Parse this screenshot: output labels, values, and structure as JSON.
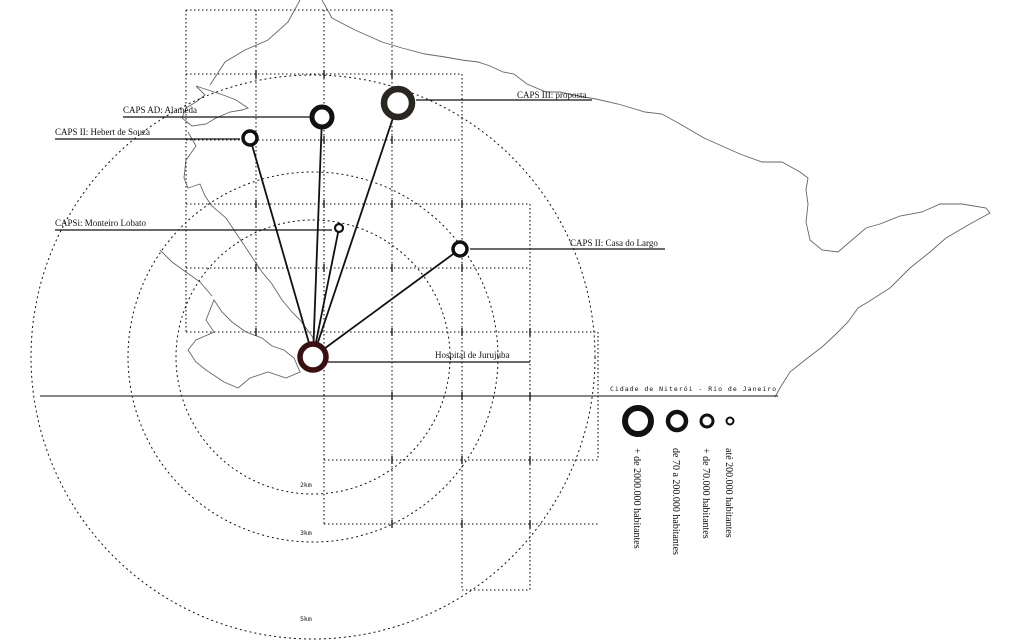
{
  "map": {
    "region_label": "Cidade de Niterói - Rio de Janeiro",
    "colors": {
      "ink": "#111111",
      "hospital": "#3a0f0f",
      "proposed": "#2a2622"
    }
  },
  "facilities": [
    {
      "id": "caps-ad",
      "label": "CAPS AD: Alameda",
      "type": "existing",
      "size_class": 2
    },
    {
      "id": "caps-ii-hebert",
      "label": "CAPS II: Hebert de Souza",
      "type": "existing",
      "size_class": 3
    },
    {
      "id": "caps-iii",
      "label": "CAPS III: proposta",
      "type": "proposed",
      "size_class": 1
    },
    {
      "id": "capsi",
      "label": "CAPSi: Monteiro Lobato",
      "type": "existing",
      "size_class": 4
    },
    {
      "id": "caps-ii-largo",
      "label": "CAPS II: Casa do Largo",
      "type": "existing",
      "size_class": 3
    },
    {
      "id": "hospital",
      "label": "Hospital de Jurujuba",
      "type": "hospital",
      "size_class": 1
    }
  ],
  "radii": [
    {
      "label": "2km"
    },
    {
      "label": "3km"
    },
    {
      "label": "5km"
    }
  ],
  "legend": [
    {
      "label": "+ de 2000.000 habitantes",
      "size_class": 1
    },
    {
      "label": "de 70 a 200.000 habitantes",
      "size_class": 2
    },
    {
      "label": "+ de 70.000 habitantes",
      "size_class": 3
    },
    {
      "label": "até 200.000 habitantes",
      "size_class": 4
    }
  ]
}
